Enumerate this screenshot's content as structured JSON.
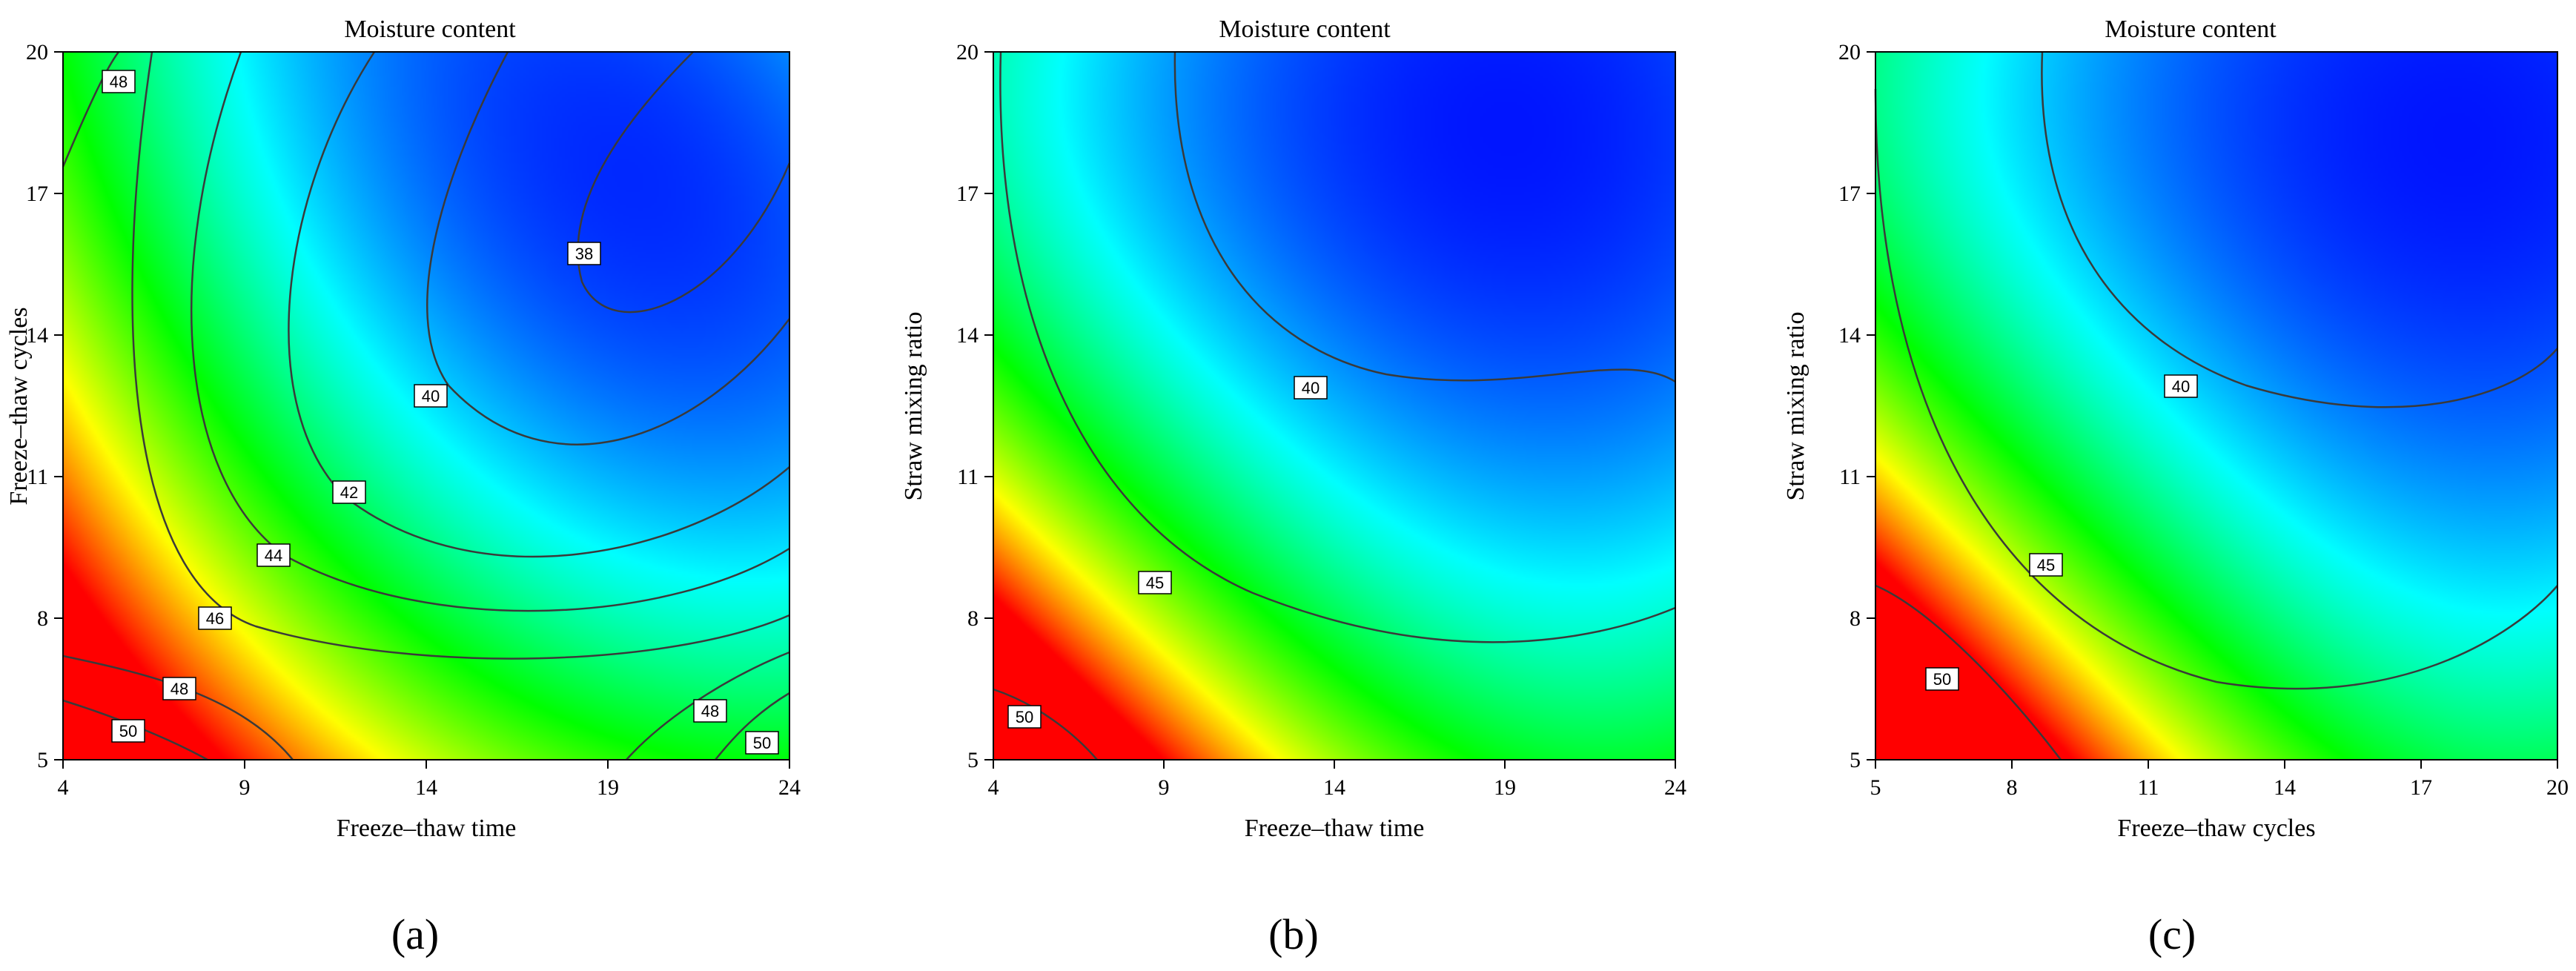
{
  "chart_data": [
    {
      "type": "contour",
      "panel": "(a)",
      "title": "Moisture content",
      "xlabel": "Freeze–thaw  time",
      "ylabel": "Freeze–thaw  cycles",
      "x_ticks": [
        "4",
        "9",
        "14",
        "19",
        "24"
      ],
      "y_ticks": [
        "5",
        "8",
        "11",
        "14",
        "17",
        "20"
      ],
      "xlim": [
        4,
        24
      ],
      "ylim": [
        5,
        20
      ],
      "contour_levels": [
        38,
        40,
        42,
        44,
        46,
        48,
        50
      ],
      "contour_labels": [
        "38",
        "40",
        "42",
        "44",
        "46",
        "48",
        "50",
        "48",
        "50",
        "48"
      ],
      "colormap": [
        "#ff0000",
        "#ffff00",
        "#00ff00",
        "#00ffff",
        "#0000ff"
      ],
      "value_range": [
        36,
        51
      ]
    },
    {
      "type": "contour",
      "panel": "(b)",
      "title": "Moisture content",
      "xlabel": "Freeze–thaw  time",
      "ylabel": "Straw mixing ratio",
      "x_ticks": [
        "4",
        "9",
        "14",
        "19",
        "24"
      ],
      "y_ticks": [
        "5",
        "8",
        "11",
        "14",
        "17",
        "20"
      ],
      "xlim": [
        4,
        24
      ],
      "ylim": [
        5,
        20
      ],
      "contour_levels": [
        40,
        45,
        50
      ],
      "contour_labels": [
        "40",
        "45",
        "50"
      ],
      "colormap": [
        "#ff0000",
        "#ffff00",
        "#00ff00",
        "#00ffff",
        "#0000ff"
      ],
      "value_range": [
        35,
        52
      ]
    },
    {
      "type": "contour",
      "panel": "(c)",
      "title": "Moisture content",
      "xlabel": "Freeze–thaw cycles",
      "ylabel": "Straw mixing ratio",
      "x_ticks": [
        "5",
        "8",
        "11",
        "14",
        "17",
        "20"
      ],
      "y_ticks": [
        "5",
        "8",
        "11",
        "14",
        "17",
        "20"
      ],
      "xlim": [
        5,
        20
      ],
      "ylim": [
        5,
        20
      ],
      "contour_levels": [
        40,
        45,
        50
      ],
      "contour_labels": [
        "40",
        "45",
        "50"
      ],
      "colormap": [
        "#ff0000",
        "#ffff00",
        "#00ff00",
        "#00ffff",
        "#0000ff"
      ],
      "value_range": [
        35,
        52
      ]
    }
  ]
}
